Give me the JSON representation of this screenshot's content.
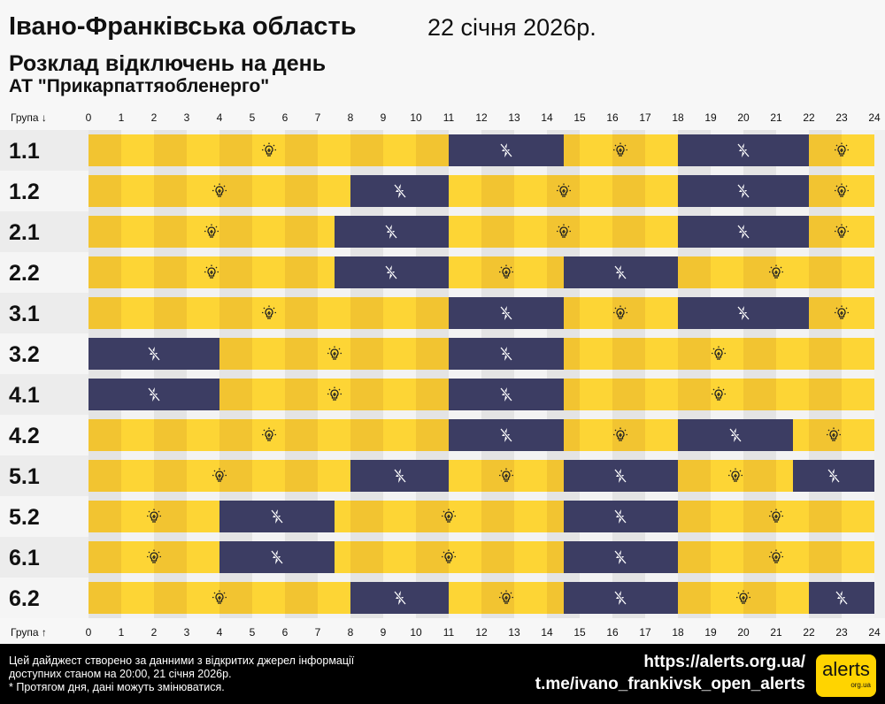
{
  "header": {
    "title": "Івано-Франківська область",
    "date": "22 січня 2026р.",
    "subtitle": "Розклад відключень на день",
    "company": "АТ \"Прикарпаттяобленерго\""
  },
  "colors": {
    "on_even": "#f2c431",
    "on_odd": "#fdd535",
    "off": "#3c3d63",
    "label_bg_a": "#ececec",
    "label_bg_b": "#f5f5f5"
  },
  "icons": {
    "on": "lightbulb-icon",
    "off": "power-off-icon"
  },
  "chart_data": {
    "type": "timeline",
    "top_axis_label": "Група ↓",
    "bottom_axis_label": "Група ↑",
    "hours": [
      "0",
      "1",
      "2",
      "3",
      "4",
      "5",
      "6",
      "7",
      "8",
      "9",
      "10",
      "11",
      "12",
      "13",
      "14",
      "15",
      "16",
      "17",
      "18",
      "19",
      "20",
      "21",
      "22",
      "23",
      "24"
    ],
    "xlim": [
      0,
      24
    ],
    "groups": [
      {
        "name": "1.1",
        "off": [
          [
            11,
            14.5
          ],
          [
            18,
            22
          ]
        ]
      },
      {
        "name": "1.2",
        "off": [
          [
            8,
            11
          ],
          [
            18,
            22
          ]
        ]
      },
      {
        "name": "2.1",
        "off": [
          [
            7.5,
            11
          ],
          [
            18,
            22
          ]
        ]
      },
      {
        "name": "2.2",
        "off": [
          [
            7.5,
            11
          ],
          [
            14.5,
            18
          ]
        ]
      },
      {
        "name": "3.1",
        "off": [
          [
            11,
            14.5
          ],
          [
            18,
            22
          ]
        ]
      },
      {
        "name": "3.2",
        "off": [
          [
            0,
            4
          ],
          [
            11,
            14.5
          ]
        ]
      },
      {
        "name": "4.1",
        "off": [
          [
            0,
            4
          ],
          [
            11,
            14.5
          ]
        ]
      },
      {
        "name": "4.2",
        "off": [
          [
            11,
            14.5
          ],
          [
            18,
            21.5
          ]
        ]
      },
      {
        "name": "5.1",
        "off": [
          [
            8,
            11
          ],
          [
            14.5,
            18
          ],
          [
            21.5,
            24
          ]
        ]
      },
      {
        "name": "5.2",
        "off": [
          [
            4,
            7.5
          ],
          [
            14.5,
            18
          ]
        ]
      },
      {
        "name": "6.1",
        "off": [
          [
            4,
            7.5
          ],
          [
            14.5,
            18
          ]
        ]
      },
      {
        "name": "6.2",
        "off": [
          [
            8,
            11
          ],
          [
            14.5,
            18
          ],
          [
            22,
            24
          ]
        ]
      }
    ]
  },
  "footer": {
    "note1": "Цей дайджест створено за данними з відкритих джерел інформації",
    "note2": "доступних станом на 20:00, 21 січня 2026р.",
    "note3": "* Протягом дня, дані можуть змінюватися.",
    "link1": "https://alerts.org.ua/",
    "link2": "t.me/ivano_frankivsk_open_alerts",
    "logo": "alerts",
    "logo_sub": "org.ua"
  }
}
